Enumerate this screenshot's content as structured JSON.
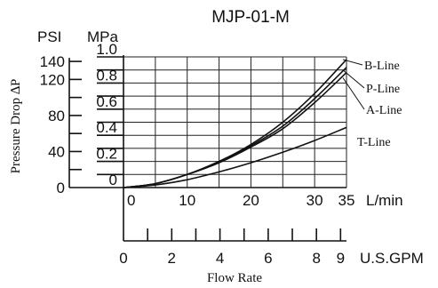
{
  "chart_data": {
    "type": "line",
    "title": "MJP-01-M",
    "xlabel": "Flow Rate",
    "ylabel": "Pressure Drop ∆P",
    "x_unit_primary": "L/min",
    "x_unit_secondary": "U.S.GPM",
    "y_unit_primary": "MPa",
    "y_unit_secondary": "PSI",
    "xlim": [
      0,
      35
    ],
    "ylim": [
      0,
      1.0
    ],
    "x_ticks": [
      0,
      10,
      20,
      30,
      35
    ],
    "x_ticks_gpm": [
      0,
      2,
      4,
      6,
      8,
      9
    ],
    "y_ticks": [
      0,
      0.2,
      0.4,
      0.6,
      0.8,
      1.0
    ],
    "y_tick_labels": [
      "0",
      "0.2",
      "0.4",
      "0.6",
      "0.8",
      "1.0"
    ],
    "psi_ticks": [
      0,
      40,
      80,
      120,
      140
    ],
    "grid": true,
    "series": [
      {
        "name": "B-Line",
        "x": [
          0,
          5,
          10,
          15,
          20,
          25,
          30,
          35
        ],
        "y": [
          0,
          0.03,
          0.1,
          0.2,
          0.33,
          0.5,
          0.72,
          0.98
        ]
      },
      {
        "name": "P-Line",
        "x": [
          0,
          5,
          10,
          15,
          20,
          25,
          30,
          35
        ],
        "y": [
          0,
          0.03,
          0.1,
          0.2,
          0.32,
          0.47,
          0.68,
          0.92
        ]
      },
      {
        "name": "A-Line",
        "x": [
          0,
          5,
          10,
          15,
          20,
          25,
          30,
          35
        ],
        "y": [
          0,
          0.03,
          0.1,
          0.19,
          0.31,
          0.45,
          0.65,
          0.88
        ]
      },
      {
        "name": "T-Line",
        "x": [
          0,
          5,
          10,
          15,
          20,
          25,
          30,
          35
        ],
        "y": [
          0,
          0.02,
          0.06,
          0.12,
          0.19,
          0.27,
          0.36,
          0.46
        ]
      }
    ]
  }
}
